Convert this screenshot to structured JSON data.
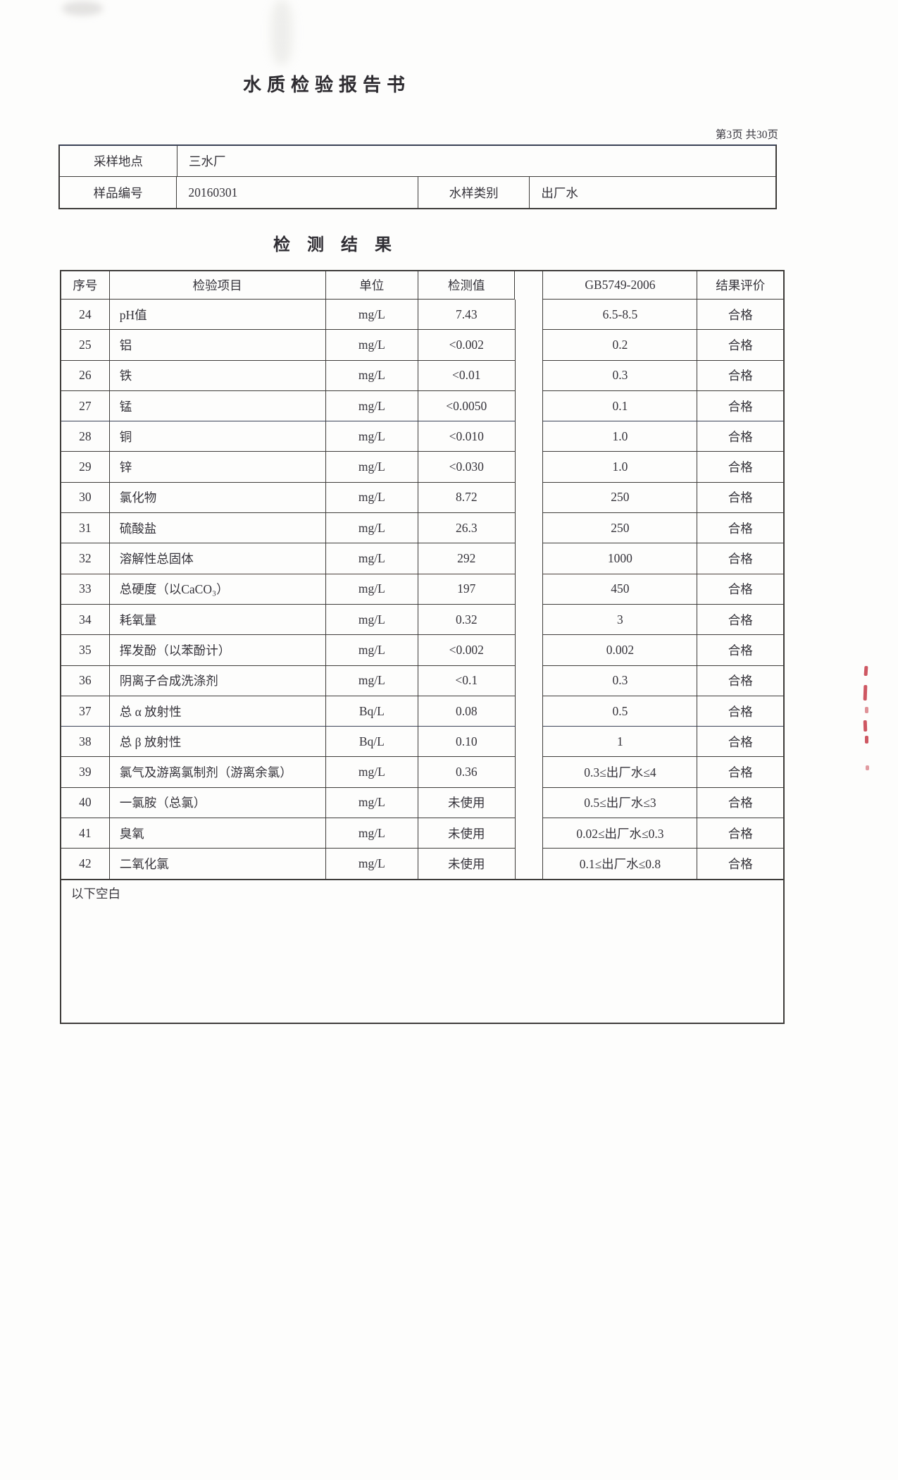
{
  "report": {
    "title": "水质检验报告书",
    "page_info": "第3页 共30页",
    "sample_info": {
      "location_label": "采样地点",
      "location_value": "三水厂",
      "sample_no_label": "样品编号",
      "sample_no_value": "20160301",
      "water_type_label": "水样类别",
      "water_type_value": "出厂水"
    },
    "section_title": "检测结果",
    "results_table": {
      "headers": {
        "no": "序号",
        "item": "检验项目",
        "unit": "单位",
        "value": "检测值",
        "standard": "GB5749-2006",
        "evaluation": "结果评价"
      },
      "rows": [
        {
          "no": "24",
          "item": "pH值",
          "unit": "mg/L",
          "value": "7.43",
          "standard": "6.5-8.5",
          "evaluation": "合格"
        },
        {
          "no": "25",
          "item": "铝",
          "unit": "mg/L",
          "value": "<0.002",
          "standard": "0.2",
          "evaluation": "合格"
        },
        {
          "no": "26",
          "item": "铁",
          "unit": "mg/L",
          "value": "<0.01",
          "standard": "0.3",
          "evaluation": "合格"
        },
        {
          "no": "27",
          "item": "锰",
          "unit": "mg/L",
          "value": "<0.0050",
          "standard": "0.1",
          "evaluation": "合格"
        },
        {
          "no": "28",
          "item": "铜",
          "unit": "mg/L",
          "value": "<0.010",
          "standard": "1.0",
          "evaluation": "合格"
        },
        {
          "no": "29",
          "item": "锌",
          "unit": "mg/L",
          "value": "<0.030",
          "standard": "1.0",
          "evaluation": "合格"
        },
        {
          "no": "30",
          "item": "氯化物",
          "unit": "mg/L",
          "value": "8.72",
          "standard": "250",
          "evaluation": "合格"
        },
        {
          "no": "31",
          "item": "硫酸盐",
          "unit": "mg/L",
          "value": "26.3",
          "standard": "250",
          "evaluation": "合格"
        },
        {
          "no": "32",
          "item": "溶解性总固体",
          "unit": "mg/L",
          "value": "292",
          "standard": "1000",
          "evaluation": "合格"
        },
        {
          "no": "33",
          "item": "总硬度（以CaCO₃）",
          "unit": "mg/L",
          "value": "197",
          "standard": "450",
          "evaluation": "合格"
        },
        {
          "no": "34",
          "item": "耗氧量",
          "unit": "mg/L",
          "value": "0.32",
          "standard": "3",
          "evaluation": "合格"
        },
        {
          "no": "35",
          "item": "挥发酚（以苯酚计）",
          "unit": "mg/L",
          "value": "<0.002",
          "standard": "0.002",
          "evaluation": "合格"
        },
        {
          "no": "36",
          "item": "阴离子合成洗涤剂",
          "unit": "mg/L",
          "value": "<0.1",
          "standard": "0.3",
          "evaluation": "合格"
        },
        {
          "no": "37",
          "item": "总 α 放射性",
          "unit": "Bq/L",
          "value": "0.08",
          "standard": "0.5",
          "evaluation": "合格"
        },
        {
          "no": "38",
          "item": "总 β 放射性",
          "unit": "Bq/L",
          "value": "0.10",
          "standard": "1",
          "evaluation": "合格"
        },
        {
          "no": "39",
          "item": "氯气及游离氯制剂（游离余氯）",
          "unit": "mg/L",
          "value": "0.36",
          "standard": "0.3≤出厂水≤4",
          "evaluation": "合格"
        },
        {
          "no": "40",
          "item": "一氯胺（总氯）",
          "unit": "mg/L",
          "value": "未使用",
          "standard": "0.5≤出厂水≤3",
          "evaluation": "合格"
        },
        {
          "no": "41",
          "item": "臭氧",
          "unit": "mg/L",
          "value": "未使用",
          "standard": "0.02≤出厂水≤0.3",
          "evaluation": "合格"
        },
        {
          "no": "42",
          "item": "二氧化氯",
          "unit": "mg/L",
          "value": "未使用",
          "standard": "0.1≤出厂水≤0.8",
          "evaluation": "合格"
        }
      ]
    },
    "footer_note": "以下空白"
  }
}
